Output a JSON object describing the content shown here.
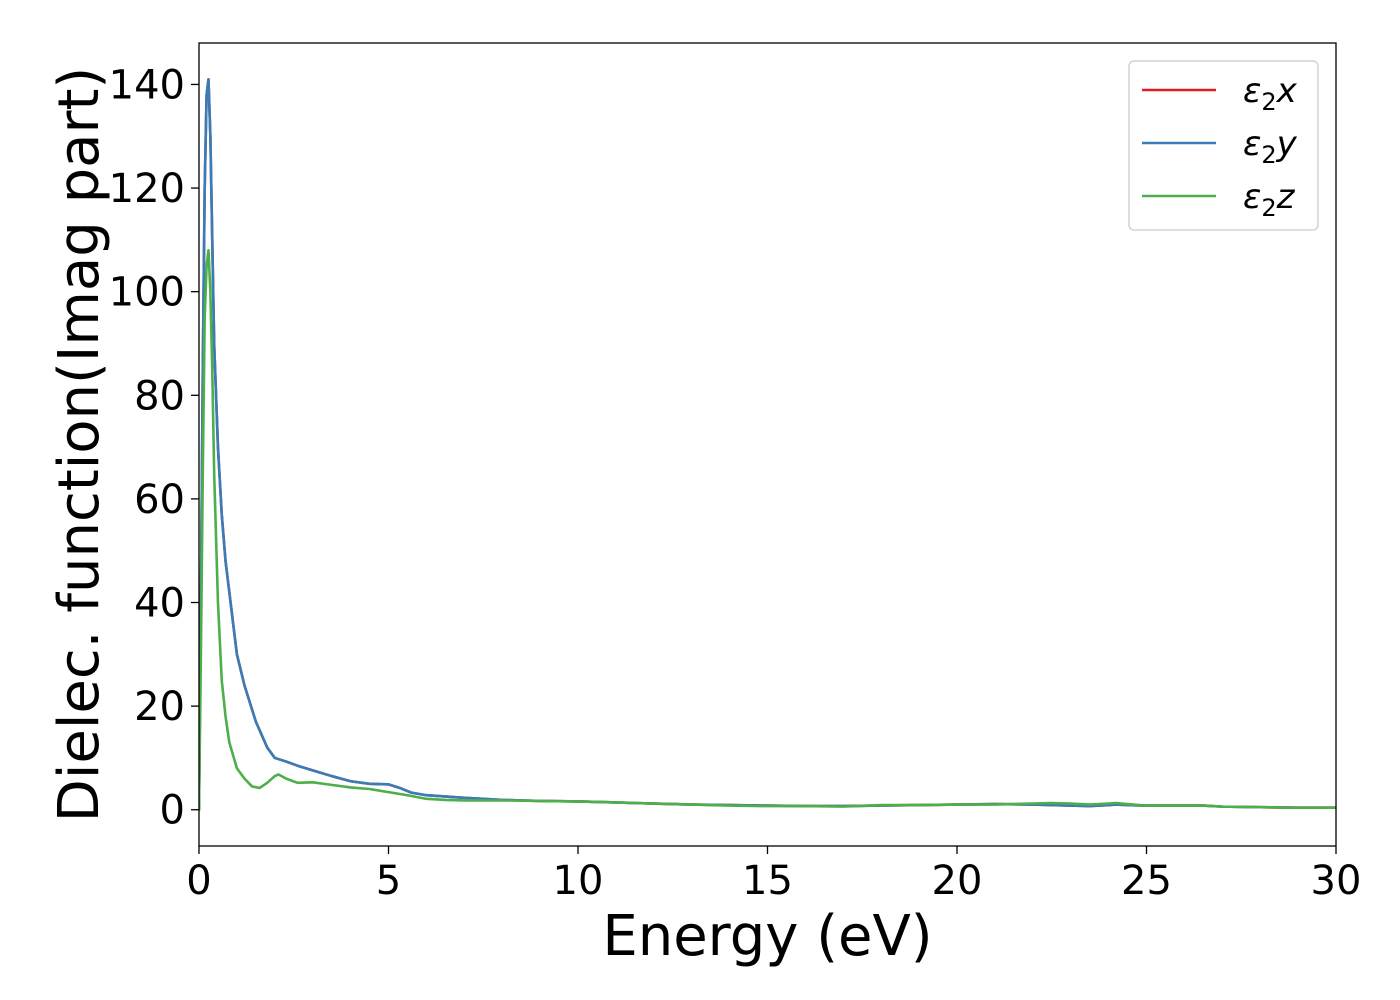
{
  "chart_data": {
    "type": "line",
    "title": "",
    "xlabel": "Energy (eV)",
    "ylabel": "Dielec. function(Imag part)",
    "xlim": [
      0,
      30
    ],
    "ylim": [
      -7,
      148
    ],
    "xticks": [
      0,
      5,
      10,
      15,
      20,
      25,
      30
    ],
    "yticks": [
      0,
      20,
      40,
      60,
      80,
      100,
      120,
      140
    ],
    "grid": false,
    "legend_position": "top-right",
    "series": [
      {
        "name": "ε2x",
        "name_base": "ε",
        "name_sub": "2",
        "name_suffix": "x",
        "color": "#e41a1c",
        "x": [
          0,
          0.05,
          0.1,
          0.15,
          0.2,
          0.25,
          0.3,
          0.35,
          0.4,
          0.5,
          0.6,
          0.7,
          0.8,
          1.0,
          1.2,
          1.5,
          1.8,
          2.0,
          2.3,
          2.6,
          3.0,
          3.5,
          4.0,
          4.5,
          5.0,
          5.3,
          5.6,
          6.0,
          7.0,
          8.0,
          9.0,
          10.0,
          11.0,
          12.0,
          13.0,
          14.0,
          15.0,
          16.0,
          17.0,
          18.0,
          19.0,
          20.0,
          21.0,
          22.0,
          22.5,
          23.0,
          23.5,
          24.0,
          24.2,
          24.5,
          25.0,
          26.0,
          26.5,
          27.0,
          28.0,
          29.0,
          30.0
        ],
        "y": [
          0,
          40,
          85,
          120,
          138,
          141,
          130,
          110,
          90,
          70,
          57,
          48,
          42,
          30,
          24,
          17,
          12,
          10,
          9.3,
          8.5,
          7.6,
          6.5,
          5.5,
          5.0,
          4.9,
          4.2,
          3.3,
          2.8,
          2.3,
          1.9,
          1.7,
          1.6,
          1.4,
          1.2,
          1.0,
          0.9,
          0.8,
          0.7,
          0.7,
          0.8,
          0.9,
          1.0,
          1.1,
          1.0,
          0.9,
          0.8,
          0.7,
          0.9,
          1.0,
          0.9,
          0.8,
          0.8,
          0.8,
          0.6,
          0.5,
          0.4,
          0.4
        ]
      },
      {
        "name": "ε2y",
        "name_base": "ε",
        "name_sub": "2",
        "name_suffix": "y",
        "color": "#377eb8",
        "x": [
          0,
          0.05,
          0.1,
          0.15,
          0.2,
          0.25,
          0.3,
          0.35,
          0.4,
          0.5,
          0.6,
          0.7,
          0.8,
          1.0,
          1.2,
          1.5,
          1.8,
          2.0,
          2.3,
          2.6,
          3.0,
          3.5,
          4.0,
          4.5,
          5.0,
          5.3,
          5.6,
          6.0,
          7.0,
          8.0,
          9.0,
          10.0,
          11.0,
          12.0,
          13.0,
          14.0,
          15.0,
          16.0,
          17.0,
          18.0,
          19.0,
          20.0,
          21.0,
          22.0,
          22.5,
          23.0,
          23.5,
          24.0,
          24.2,
          24.5,
          25.0,
          26.0,
          26.5,
          27.0,
          28.0,
          29.0,
          30.0
        ],
        "y": [
          0,
          40,
          85,
          120,
          138,
          141,
          130,
          110,
          90,
          70,
          57,
          48,
          42,
          30,
          24,
          17,
          12,
          10,
          9.3,
          8.5,
          7.6,
          6.5,
          5.5,
          5.0,
          4.9,
          4.2,
          3.3,
          2.8,
          2.3,
          1.9,
          1.7,
          1.6,
          1.4,
          1.2,
          1.0,
          0.9,
          0.8,
          0.7,
          0.7,
          0.8,
          0.9,
          1.0,
          1.1,
          1.0,
          0.9,
          0.8,
          0.7,
          0.9,
          1.0,
          0.9,
          0.8,
          0.8,
          0.8,
          0.6,
          0.5,
          0.4,
          0.4
        ]
      },
      {
        "name": "ε2z",
        "name_base": "ε",
        "name_sub": "2",
        "name_suffix": "z",
        "color": "#4daf4a",
        "x": [
          0,
          0.05,
          0.1,
          0.15,
          0.2,
          0.25,
          0.3,
          0.35,
          0.4,
          0.5,
          0.6,
          0.7,
          0.8,
          1.0,
          1.2,
          1.4,
          1.6,
          1.8,
          2.0,
          2.1,
          2.3,
          2.6,
          3.0,
          3.5,
          4.0,
          4.5,
          5.0,
          5.5,
          6.0,
          6.5,
          7.0,
          8.0,
          9.0,
          10.0,
          11.0,
          12.0,
          13.0,
          14.0,
          15.0,
          16.0,
          17.0,
          18.0,
          19.0,
          20.0,
          21.0,
          22.0,
          22.5,
          23.0,
          23.5,
          24.0,
          24.2,
          24.5,
          25.0,
          26.0,
          26.5,
          27.0,
          28.0,
          29.0,
          30.0
        ],
        "y": [
          0,
          30,
          65,
          95,
          105,
          108,
          100,
          85,
          65,
          40,
          25,
          18,
          13,
          8,
          6,
          4.5,
          4.2,
          5.2,
          6.5,
          6.8,
          6.0,
          5.2,
          5.3,
          4.8,
          4.3,
          4.0,
          3.4,
          2.8,
          2.1,
          1.9,
          1.8,
          1.8,
          1.7,
          1.6,
          1.4,
          1.2,
          1.0,
          0.8,
          0.7,
          0.7,
          0.6,
          0.9,
          0.9,
          1.0,
          1.0,
          1.2,
          1.3,
          1.2,
          1.0,
          1.2,
          1.3,
          1.1,
          0.8,
          0.8,
          0.8,
          0.6,
          0.5,
          0.4,
          0.4
        ]
      }
    ]
  }
}
